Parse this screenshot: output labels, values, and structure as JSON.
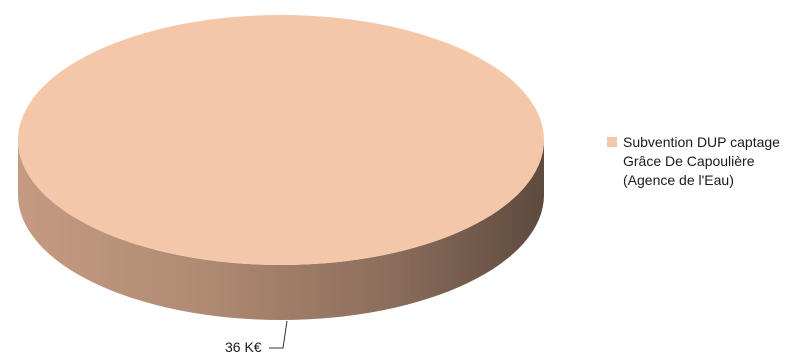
{
  "chart_data": {
    "type": "pie",
    "title": "",
    "slices": [
      {
        "label": "Subvention DUP captage Grâce De Capoulière (Agence de l'Eau)",
        "value": 36,
        "value_label": "36 K€",
        "color": "#F4C7A9"
      }
    ],
    "legend": {
      "placement": "right",
      "lines": [
        "Subvention DUP captage",
        "Grâce De Capoulière",
        "(Agence de l'Eau)"
      ]
    },
    "style": {
      "three_d": true,
      "side_gradient_colors": [
        "#C49B82",
        "#B08A73",
        "#8C6E5C",
        "#5E4A3E"
      ]
    }
  }
}
